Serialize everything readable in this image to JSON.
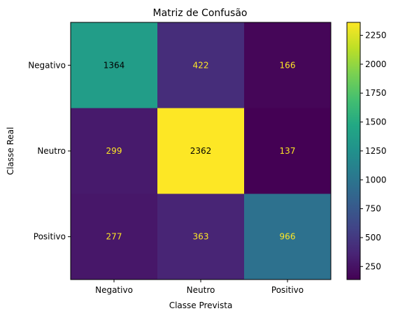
{
  "chart_data": {
    "type": "heatmap",
    "title": "Matriz de Confusão",
    "xlabel": "Classe Prevista",
    "ylabel": "Classe Real",
    "x_categories": [
      "Negativo",
      "Neutro",
      "Positivo"
    ],
    "y_categories": [
      "Negativo",
      "Neutro",
      "Positivo"
    ],
    "values": [
      [
        1364,
        422,
        166
      ],
      [
        299,
        2362,
        137
      ],
      [
        277,
        363,
        966
      ]
    ],
    "colormap": "viridis",
    "colorbar": {
      "range": [
        137,
        2362
      ],
      "ticks": [
        250,
        500,
        750,
        1000,
        1250,
        1500,
        1750,
        2000,
        2250
      ]
    },
    "text_colors": {
      "light": "#fde725",
      "dark": "#000000"
    }
  }
}
